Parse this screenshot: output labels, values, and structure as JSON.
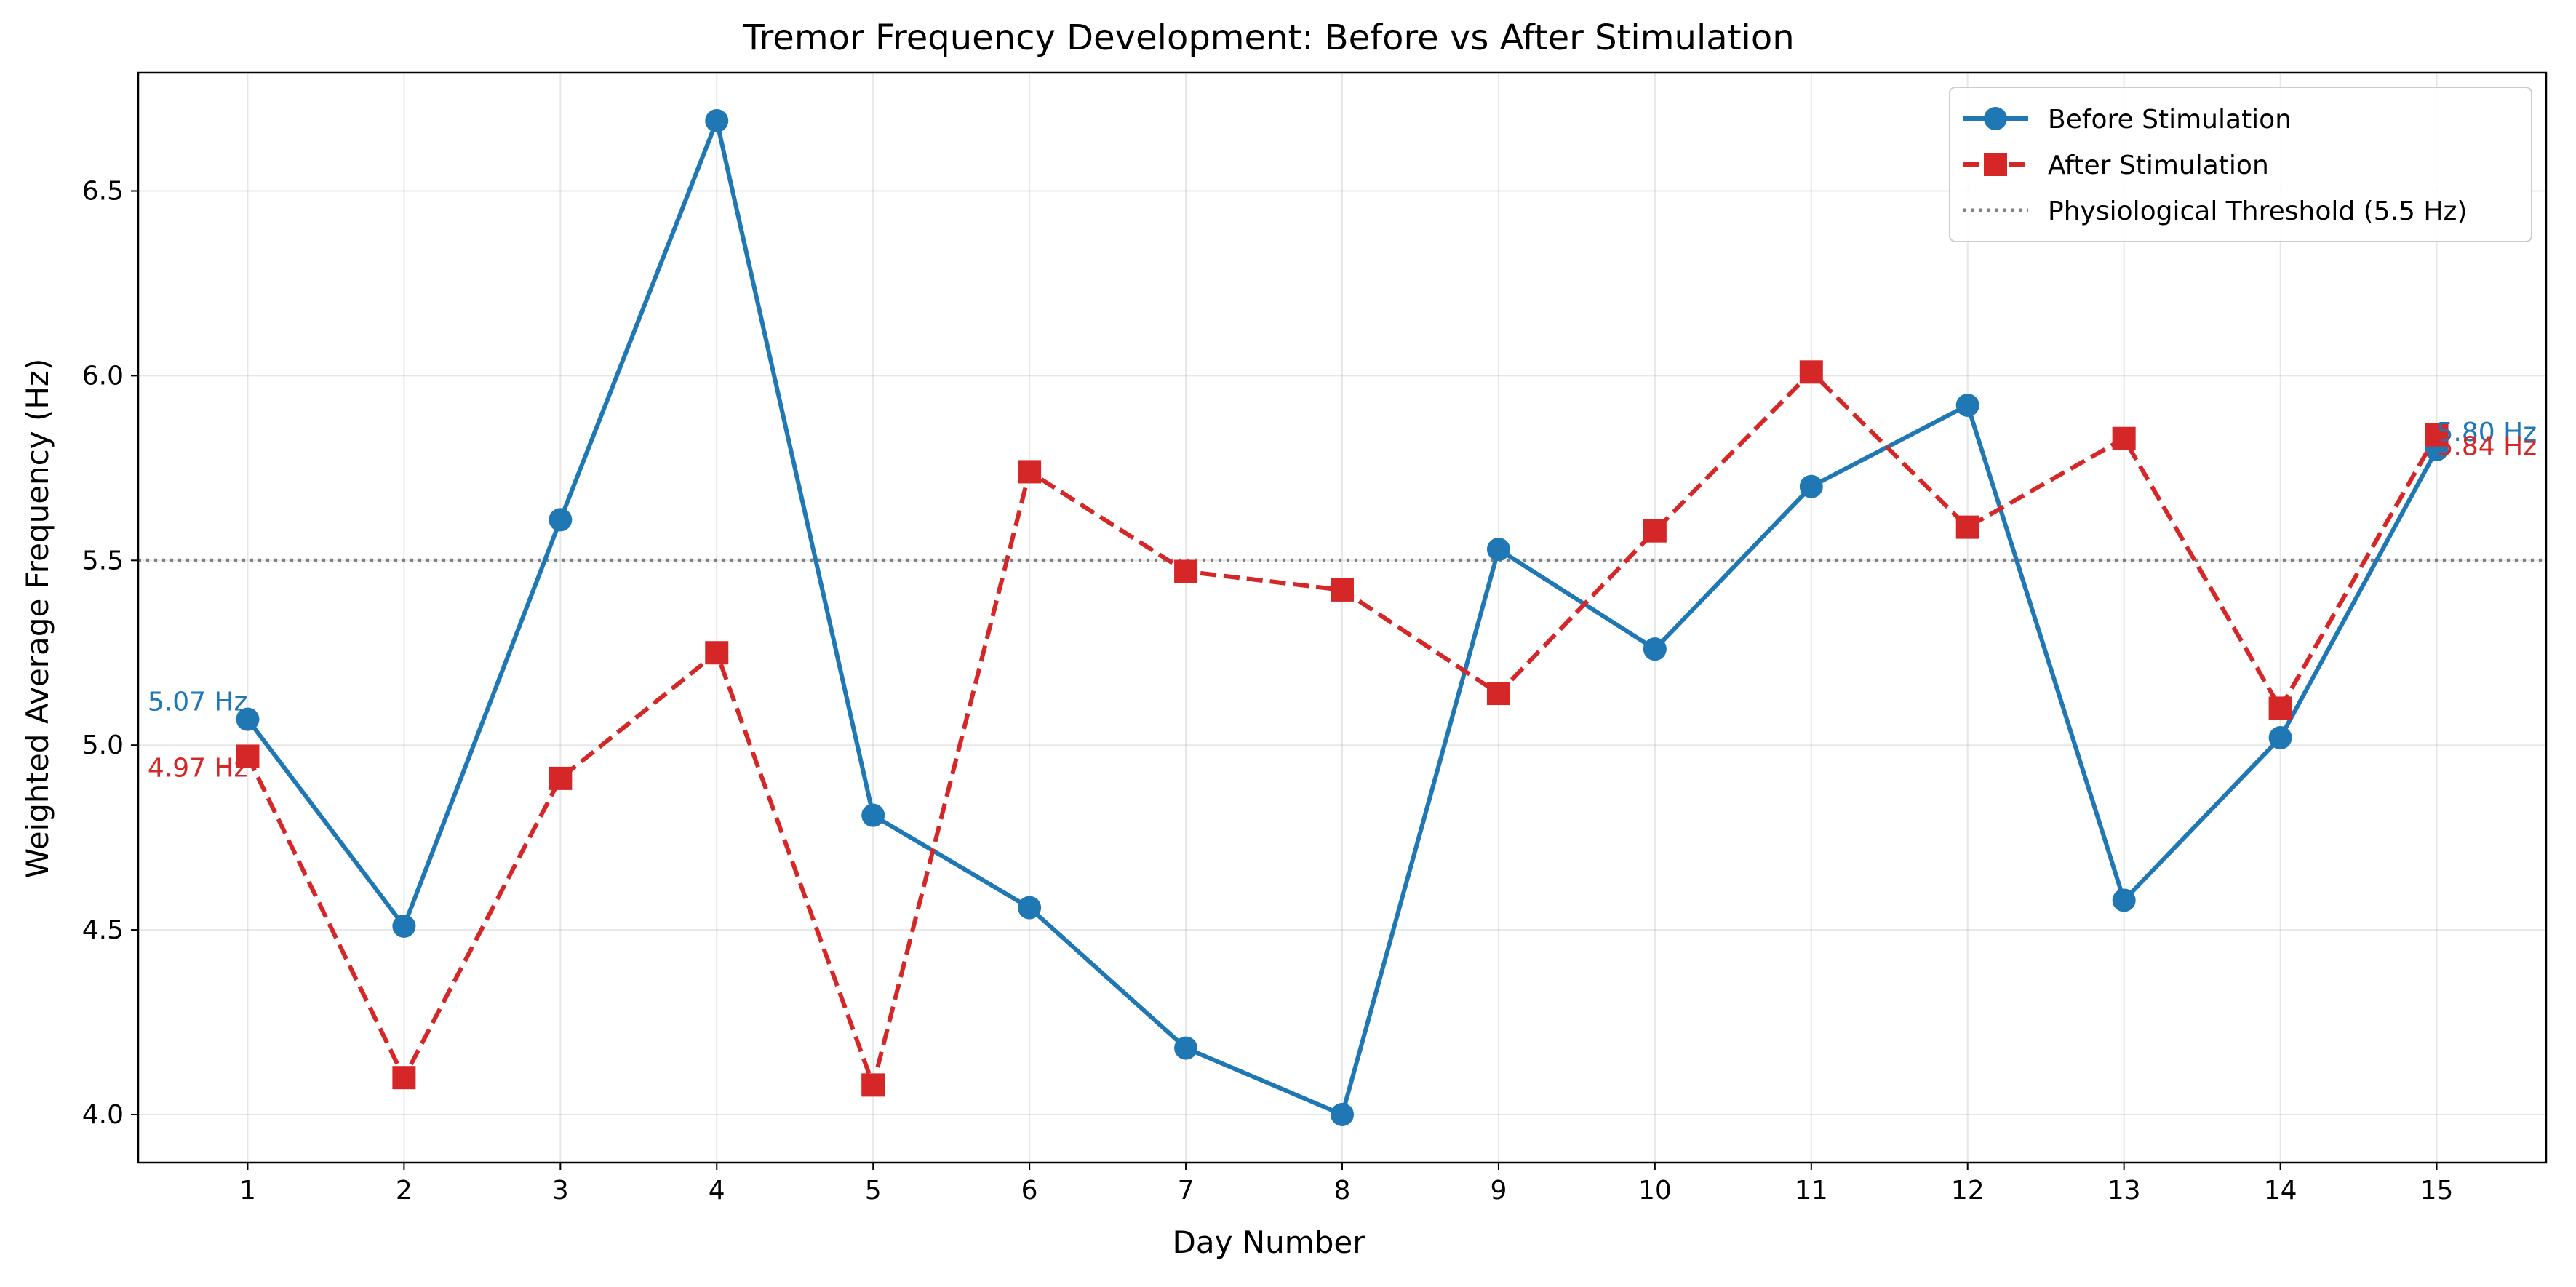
{
  "chart_data": {
    "type": "line",
    "title": "Tremor Frequency Development: Before vs After Stimulation",
    "xlabel": "Day Number",
    "ylabel": "Weighted Average Frequency (Hz)",
    "x": [
      1,
      2,
      3,
      4,
      5,
      6,
      7,
      8,
      9,
      10,
      11,
      12,
      13,
      14,
      15
    ],
    "xlim": [
      0.3,
      15.7
    ],
    "ylim": [
      3.87,
      6.82
    ],
    "yticks": [
      4.0,
      4.5,
      5.0,
      5.5,
      6.0,
      6.5
    ],
    "ytick_labels": [
      "4.0",
      "4.5",
      "5.0",
      "5.5",
      "6.0",
      "6.5"
    ],
    "xtick_labels": [
      "1",
      "2",
      "3",
      "4",
      "5",
      "6",
      "7",
      "8",
      "9",
      "10",
      "11",
      "12",
      "13",
      "14",
      "15"
    ],
    "grid": true,
    "legend_position": "top-right",
    "series": [
      {
        "name": "Before Stimulation",
        "color": "#1f77b4",
        "line_style": "solid",
        "marker": "circle",
        "values": [
          5.07,
          4.51,
          5.61,
          6.69,
          4.81,
          4.56,
          4.18,
          4.0,
          5.53,
          5.26,
          5.7,
          5.92,
          4.58,
          5.02,
          5.8
        ]
      },
      {
        "name": "After Stimulation",
        "color": "#d62728",
        "line_style": "dashed",
        "marker": "square",
        "values": [
          4.97,
          4.1,
          4.91,
          5.25,
          4.08,
          5.74,
          5.47,
          5.42,
          5.14,
          5.58,
          6.01,
          5.59,
          5.83,
          5.1,
          5.84
        ]
      }
    ],
    "threshold": {
      "label": "Physiological Threshold (5.5 Hz)",
      "value": 5.5,
      "color": "#808080",
      "line_style": "dotted"
    },
    "annotations": [
      {
        "text": "5.07 Hz",
        "x": 1,
        "y": 5.07,
        "series": 0,
        "side": "left"
      },
      {
        "text": "4.97 Hz",
        "x": 1,
        "y": 4.97,
        "series": 1,
        "side": "left"
      },
      {
        "text": "5.80 Hz",
        "x": 15,
        "y": 5.8,
        "series": 0,
        "side": "right"
      },
      {
        "text": "5.84 Hz",
        "x": 15,
        "y": 5.84,
        "series": 1,
        "side": "right"
      }
    ]
  }
}
